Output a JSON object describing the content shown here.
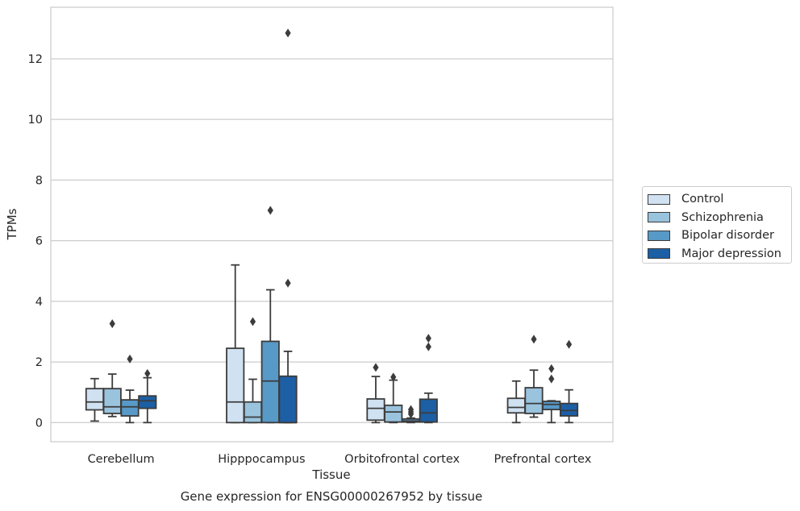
{
  "chart_data": {
    "type": "box",
    "title": "Gene expression for ENSG00000267952 by tissue",
    "xlabel": "Tissue",
    "ylabel": "TPMs",
    "ylim": [
      -0.63,
      13.7
    ],
    "yticks": [
      0,
      2,
      4,
      6,
      8,
      10,
      12
    ],
    "grid": true,
    "legend_position": "right",
    "categories": [
      "Cerebellum",
      "Hipppocampus",
      "Orbitofrontal cortex",
      "Prefrontal cortex"
    ],
    "series": [
      {
        "name": "Control",
        "color": "#d0e1f1",
        "boxes": [
          {
            "min": 0.05,
            "q1": 0.42,
            "median": 0.68,
            "q3": 1.12,
            "max": 1.45,
            "outliers": []
          },
          {
            "min": 0.0,
            "q1": 0.0,
            "median": 0.68,
            "q3": 2.45,
            "max": 5.2,
            "outliers": []
          },
          {
            "min": 0.0,
            "q1": 0.08,
            "median": 0.47,
            "q3": 0.78,
            "max": 1.52,
            "outliers": [
              1.82
            ]
          },
          {
            "min": 0.0,
            "q1": 0.32,
            "median": 0.5,
            "q3": 0.8,
            "max": 1.37,
            "outliers": []
          }
        ]
      },
      {
        "name": "Schizophrenia",
        "color": "#9ac3de",
        "boxes": [
          {
            "min": 0.2,
            "q1": 0.3,
            "median": 0.52,
            "q3": 1.12,
            "max": 1.6,
            "outliers": [
              3.26
            ]
          },
          {
            "min": 0.0,
            "q1": 0.0,
            "median": 0.18,
            "q3": 0.68,
            "max": 1.43,
            "outliers": [
              3.33
            ]
          },
          {
            "min": 0.0,
            "q1": 0.02,
            "median": 0.35,
            "q3": 0.57,
            "max": 1.4,
            "outliers": [
              1.5
            ]
          },
          {
            "min": 0.18,
            "q1": 0.3,
            "median": 0.63,
            "q3": 1.15,
            "max": 1.73,
            "outliers": [
              2.75
            ]
          }
        ]
      },
      {
        "name": "Bipolar disorder",
        "color": "#5799c7",
        "boxes": [
          {
            "min": 0.0,
            "q1": 0.22,
            "median": 0.52,
            "q3": 0.75,
            "max": 1.07,
            "outliers": [
              2.1
            ]
          },
          {
            "min": 0.0,
            "q1": 0.0,
            "median": 1.37,
            "q3": 2.68,
            "max": 4.38,
            "outliers": [
              7.0
            ]
          },
          {
            "min": 0.0,
            "q1": 0.02,
            "median": 0.05,
            "q3": 0.12,
            "max": 0.15,
            "outliers": [
              0.28,
              0.35,
              0.43
            ]
          },
          {
            "min": 0.0,
            "q1": 0.43,
            "median": 0.6,
            "q3": 0.7,
            "max": 0.72,
            "outliers": [
              1.44,
              1.78
            ]
          }
        ]
      },
      {
        "name": "Major depression",
        "color": "#1c5fa5",
        "boxes": [
          {
            "min": 0.0,
            "q1": 0.47,
            "median": 0.72,
            "q3": 0.88,
            "max": 1.48,
            "outliers": [
              1.62
            ]
          },
          {
            "min": 0.0,
            "q1": 0.0,
            "median": 0.0,
            "q3": 1.53,
            "max": 2.35,
            "outliers": [
              4.6,
              12.85
            ]
          },
          {
            "min": 0.0,
            "q1": 0.02,
            "median": 0.32,
            "q3": 0.77,
            "max": 0.97,
            "outliers": [
              2.5,
              2.78
            ]
          },
          {
            "min": 0.0,
            "q1": 0.22,
            "median": 0.4,
            "q3": 0.63,
            "max": 1.08,
            "outliers": [
              2.58
            ]
          }
        ]
      }
    ]
  }
}
